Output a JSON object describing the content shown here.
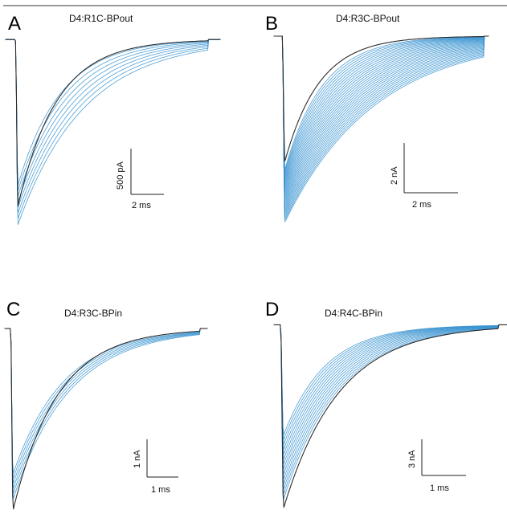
{
  "figure": {
    "colors": {
      "control": "#2b2b2b",
      "experimental": "#3a93d0",
      "background": "#ffffff"
    }
  },
  "chart_data": [
    {
      "type": "line",
      "panel": "A",
      "title": "D4:R1C-BPout",
      "xlabel": "",
      "ylabel": "",
      "axes_visible": false,
      "grid": false,
      "x_unit": "ms",
      "y_unit": "pA",
      "xlim": [
        -0.5,
        10.5
      ],
      "ylim": [
        -1600,
        60
      ],
      "onset_ms": 0,
      "offset_ms": 9.9,
      "sweep_count": 8,
      "peak_range": [
        -1180,
        -1500
      ],
      "tau_range_ms": [
        2.2,
        3.4
      ],
      "control_series": {
        "name": "",
        "peak": -1350,
        "tau_ms": 2.0
      },
      "scale_bar": {
        "x_value": 2,
        "x_label": "2 ms",
        "y_value": 500,
        "y_label": "500 pA"
      }
    },
    {
      "type": "line",
      "panel": "B",
      "title": "D4:R3C-BPout",
      "xlabel": "",
      "ylabel": "",
      "axes_visible": false,
      "grid": false,
      "x_unit": "ms",
      "y_unit": "nA",
      "xlim": [
        -0.5,
        12.5
      ],
      "ylim": [
        -4.9,
        0.1
      ],
      "onset_ms": 0,
      "offset_ms": 12.2,
      "sweep_count": 28,
      "peak_range": [
        -3.3,
        -4.6
      ],
      "tau_range_ms": [
        2.3,
        5.5
      ],
      "control_series": {
        "name": "",
        "peak": -3.1,
        "tau_ms": 2.1
      },
      "scale_bar": {
        "x_value": 2,
        "x_label": "2 ms",
        "y_value": 2,
        "y_label": "2 nA"
      }
    },
    {
      "type": "line",
      "panel": "C",
      "title": "D4:R3C-BPin",
      "xlabel": "",
      "ylabel": "",
      "axes_visible": false,
      "grid": false,
      "x_unit": "ms",
      "y_unit": "nA",
      "xlim": [
        -0.15,
        5.1
      ],
      "ylim": [
        -2.55,
        0.1
      ],
      "onset_ms": 0,
      "offset_ms": 4.9,
      "sweep_count": 6,
      "peak_range": [
        -2.0,
        -2.35
      ],
      "tau_range_ms": [
        1.3,
        1.45
      ],
      "control_series": {
        "name": "",
        "peak": -2.5,
        "tau_ms": 1.15
      },
      "scale_bar": {
        "x_value": 1,
        "x_label": "1 ms",
        "y_value": 1,
        "y_label": "1 nA"
      }
    },
    {
      "type": "line",
      "panel": "D",
      "title": "D4:R4C-BPin",
      "xlabel": "",
      "ylabel": "",
      "axes_visible": false,
      "grid": false,
      "x_unit": "ms",
      "y_unit": "nA",
      "xlim": [
        -0.15,
        5.1
      ],
      "ylim": [
        -10.6,
        0.2
      ],
      "onset_ms": 0,
      "offset_ms": 4.9,
      "sweep_count": 14,
      "peak_range": [
        -6.2,
        -9.8
      ],
      "tau_range_ms": [
        0.95,
        1.25
      ],
      "control_series": {
        "name": "",
        "peak": -10.3,
        "tau_ms": 1.25
      },
      "scale_bar": {
        "x_value": 1,
        "x_label": "1 ms",
        "y_value": 3,
        "y_label": "3 nA"
      }
    }
  ],
  "panels": [
    {
      "letter": "A",
      "title": "D4:R1C-BPout",
      "scale_x": "2 ms",
      "scale_y": "500 pA"
    },
    {
      "letter": "B",
      "title": "D4:R3C-BPout",
      "scale_x": "2 ms",
      "scale_y": "2 nA"
    },
    {
      "letter": "C",
      "title": "D4:R3C-BPin",
      "scale_x": "1 ms",
      "scale_y": "1 nA"
    },
    {
      "letter": "D",
      "title": "D4:R4C-BPin",
      "scale_x": "1 ms",
      "scale_y": "3 nA"
    }
  ]
}
